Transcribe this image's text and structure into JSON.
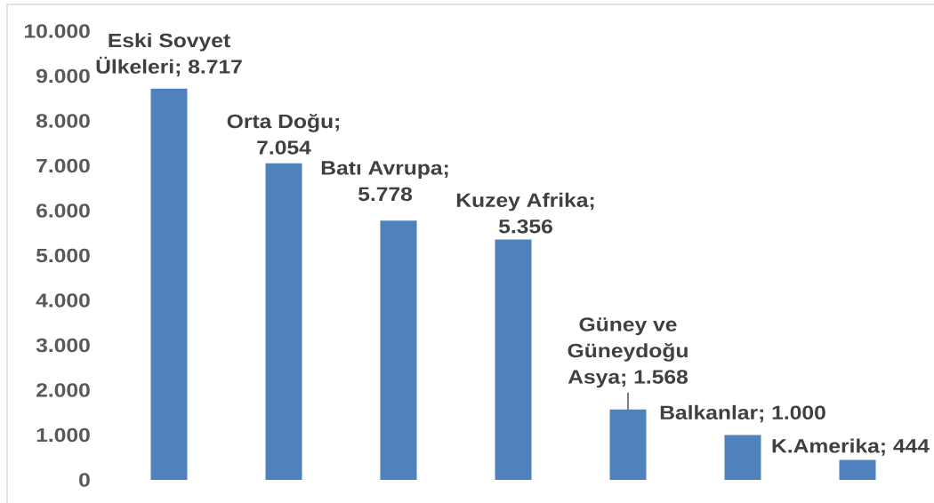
{
  "chart_data": {
    "type": "bar",
    "categories": [
      null,
      null,
      null,
      null,
      null,
      null,
      null
    ],
    "values": [
      8717,
      7054,
      5778,
      5356,
      1568,
      1000,
      444
    ],
    "color": "#4f81bd",
    "value_labels": [
      "Eski Sovyet Ülkeleri; 8.717",
      "Orta Doğu; 7.054",
      "Batı Avrupa; 5.778",
      "Kuzey Afrika; 5.356",
      "Güney ve Güneydoğu Asya; 1.568",
      "Balkanlar; 1.000",
      "K.Amerika; 444"
    ],
    "ylim": [
      0,
      10000
    ],
    "yticks": [
      0,
      {
        "value": 1000,
        "label": "1.000"
      },
      {
        "value": 2000,
        "label": "2.000"
      },
      {
        "value": 3000,
        "label": "3.000"
      },
      {
        "value": 4000,
        "label": "4.000"
      },
      {
        "value": 5000,
        "label": "5.000"
      },
      {
        "value": 6000,
        "label": "6.000"
      },
      {
        "value": 7000,
        "label": "7.000"
      },
      {
        "value": 8000,
        "label": "8.000"
      },
      {
        "value": 9000,
        "label": "9.000"
      },
      {
        "value": 10000,
        "label": "10.000"
      }
    ],
    "tick_labels": "y"
  }
}
